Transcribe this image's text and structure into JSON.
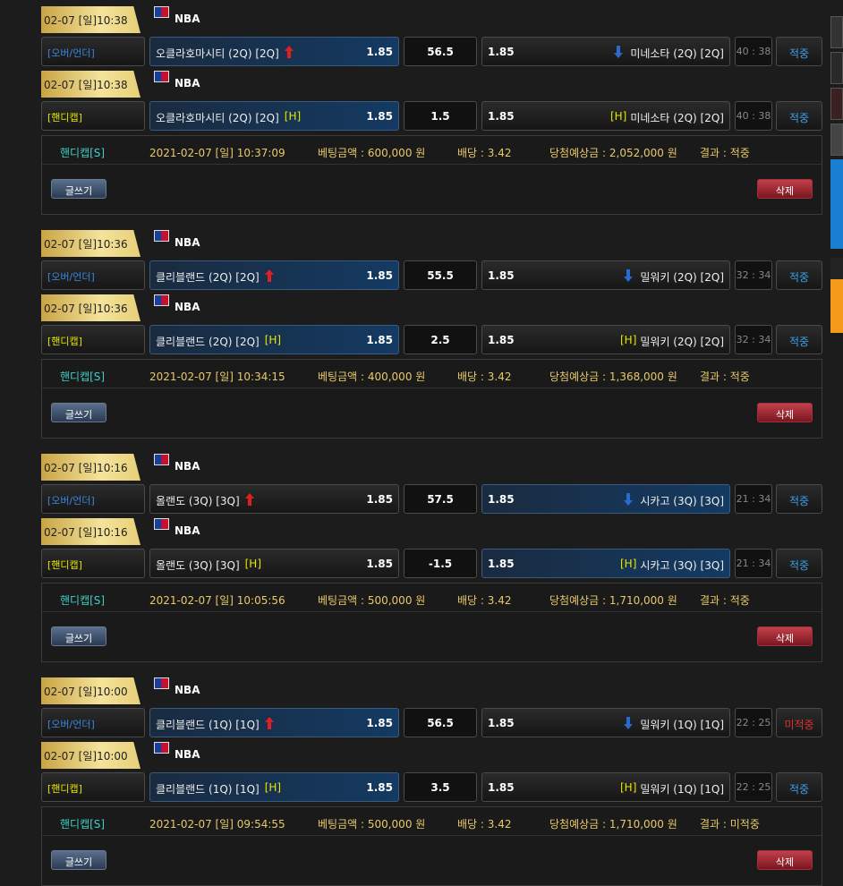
{
  "buttons": {
    "write": "글쓰기",
    "delete": "삭제"
  },
  "groups": [
    {
      "rows": [
        {
          "date": "02-07 [일]10:38",
          "league": "NBA",
          "type": "[오버/언더]",
          "home": "오클라호마시티 (2Q) [2Q]",
          "home_odds": "1.85",
          "line": "56.5",
          "away_odds": "1.85",
          "away": "미네소타 (2Q) [2Q]",
          "score": "40 : 38",
          "result": "적중",
          "pick": "home"
        },
        {
          "date": "02-07 [일]10:38",
          "league": "NBA",
          "type": "[핸디캡]",
          "home": "오클라호마시티 (2Q) [2Q]",
          "home_tag": "[H]",
          "home_odds": "1.85",
          "line": "1.5",
          "away_odds": "1.85",
          "away_tag": "[H]",
          "away": "미네소타 (2Q) [2Q]",
          "score": "40 : 38",
          "result": "적중",
          "pick": "home"
        }
      ],
      "summary": {
        "type": "핸디캡[S]",
        "time": "2021-02-07 [일] 10:37:09",
        "amount": "베팅금액 : 600,000 원",
        "odds": "배당 : 3.42",
        "payout": "당첨예상금 : 2,052,000 원",
        "result": "결과 : 적중"
      }
    },
    {
      "rows": [
        {
          "date": "02-07 [일]10:36",
          "league": "NBA",
          "type": "[오버/언더]",
          "home": "클리블랜드 (2Q) [2Q]",
          "home_odds": "1.85",
          "line": "55.5",
          "away_odds": "1.85",
          "away": "밀워키 (2Q) [2Q]",
          "score": "32 : 34",
          "result": "적중",
          "pick": "home"
        },
        {
          "date": "02-07 [일]10:36",
          "league": "NBA",
          "type": "[핸디캡]",
          "home": "클리블랜드 (2Q) [2Q]",
          "home_tag": "[H]",
          "home_odds": "1.85",
          "line": "2.5",
          "away_odds": "1.85",
          "away_tag": "[H]",
          "away": "밀워키 (2Q) [2Q]",
          "score": "32 : 34",
          "result": "적중",
          "pick": "home"
        }
      ],
      "summary": {
        "type": "핸디캡[S]",
        "time": "2021-02-07 [일] 10:34:15",
        "amount": "베팅금액 : 400,000 원",
        "odds": "배당 : 3.42",
        "payout": "당첨예상금 : 1,368,000 원",
        "result": "결과 : 적중"
      }
    },
    {
      "rows": [
        {
          "date": "02-07 [일]10:16",
          "league": "NBA",
          "type": "[오버/언더]",
          "home": "올랜도 (3Q) [3Q]",
          "home_odds": "1.85",
          "line": "57.5",
          "away_odds": "1.85",
          "away": "시카고 (3Q) [3Q]",
          "score": "21 : 34",
          "result": "적중",
          "pick": "away"
        },
        {
          "date": "02-07 [일]10:16",
          "league": "NBA",
          "type": "[핸디캡]",
          "home": "올랜도 (3Q) [3Q]",
          "home_tag": "[H]",
          "home_odds": "1.85",
          "line": "-1.5",
          "away_odds": "1.85",
          "away_tag": "[H]",
          "away": "시카고 (3Q) [3Q]",
          "score": "21 : 34",
          "result": "적중",
          "pick": "away"
        }
      ],
      "summary": {
        "type": "핸디캡[S]",
        "time": "2021-02-07 [일] 10:05:56",
        "amount": "베팅금액 : 500,000 원",
        "odds": "배당 : 3.42",
        "payout": "당첨예상금 : 1,710,000 원",
        "result": "결과 : 적중"
      }
    },
    {
      "rows": [
        {
          "date": "02-07 [일]10:00",
          "league": "NBA",
          "type": "[오버/언더]",
          "home": "클리블랜드 (1Q) [1Q]",
          "home_odds": "1.85",
          "line": "56.5",
          "away_odds": "1.85",
          "away": "밀워키 (1Q) [1Q]",
          "score": "22 : 25",
          "result": "미적중",
          "pick": "home"
        },
        {
          "date": "02-07 [일]10:00",
          "league": "NBA",
          "type": "[핸디캡]",
          "home": "클리블랜드 (1Q) [1Q]",
          "home_tag": "[H]",
          "home_odds": "1.85",
          "line": "3.5",
          "away_odds": "1.85",
          "away_tag": "[H]",
          "away": "밀워키 (1Q) [1Q]",
          "score": "22 : 25",
          "result": "적중",
          "pick": "home"
        }
      ],
      "summary": {
        "type": "핸디캡[S]",
        "time": "2021-02-07 [일] 09:54:55",
        "amount": "베팅금액 : 500,000 원",
        "odds": "배당 : 3.42",
        "payout": "당첨예상금 : 1,710,000 원",
        "result": "결과 : 미적중"
      }
    }
  ]
}
